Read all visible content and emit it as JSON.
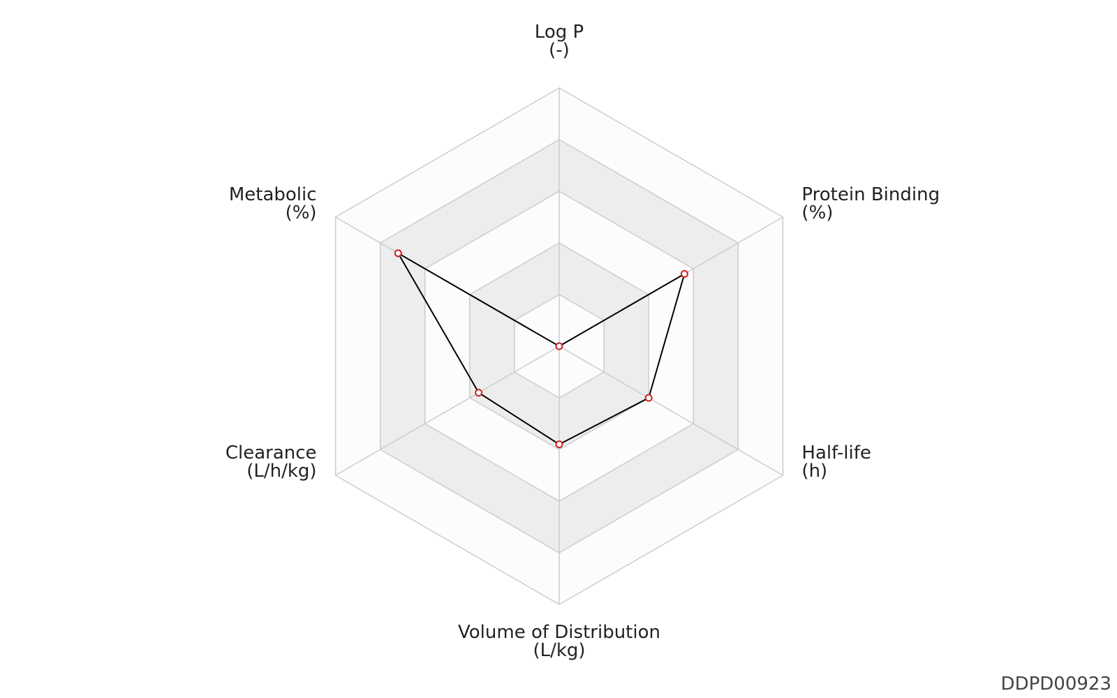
{
  "chart_data": {
    "type": "radar",
    "axes": [
      {
        "name": "Log P",
        "unit": "(-)"
      },
      {
        "name": "Protein Binding",
        "unit": "(%)"
      },
      {
        "name": "Half-life",
        "unit": "(h)"
      },
      {
        "name": "Volume of Distribution",
        "unit": "(L/kg)"
      },
      {
        "name": "Clearance",
        "unit": "(L/h/kg)"
      },
      {
        "name": "Metabolic",
        "unit": "(%)"
      }
    ],
    "series": [
      {
        "color": "#000000",
        "marker_color": "#cc2222",
        "values": [
          0,
          2.8,
          2.0,
          1.9,
          1.8,
          3.6
        ]
      }
    ],
    "rlim": [
      0,
      5
    ],
    "rticks": [
      1,
      2,
      3,
      4,
      5
    ],
    "band_colors": [
      "#fcfcfc",
      "#ededed"
    ],
    "grid_color": "#cccccc",
    "watermark": "DDPD00923"
  }
}
